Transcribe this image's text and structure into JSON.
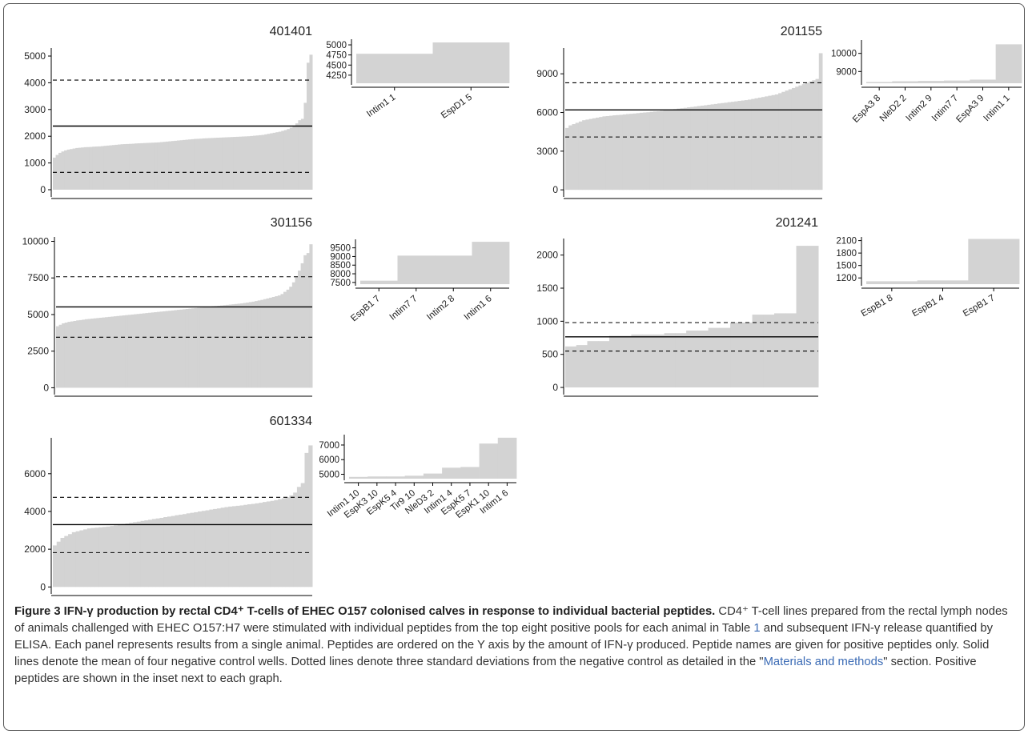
{
  "chart_data": [
    {
      "type": "bar",
      "title": "401401",
      "ylim": [
        -150,
        5300
      ],
      "yticks": [
        0,
        1000,
        2000,
        3000,
        4000,
        5000
      ],
      "mean": 2380,
      "sd_lines": [
        650,
        4100
      ],
      "values": [
        1200,
        1300,
        1380,
        1430,
        1470,
        1500,
        1520,
        1540,
        1560,
        1570,
        1580,
        1590,
        1595,
        1600,
        1610,
        1615,
        1620,
        1630,
        1640,
        1650,
        1660,
        1670,
        1680,
        1690,
        1700,
        1705,
        1710,
        1715,
        1720,
        1730,
        1735,
        1740,
        1745,
        1750,
        1755,
        1760,
        1765,
        1770,
        1780,
        1790,
        1800,
        1810,
        1820,
        1830,
        1840,
        1850,
        1860,
        1870,
        1880,
        1890,
        1900,
        1905,
        1910,
        1920,
        1925,
        1930,
        1935,
        1940,
        1945,
        1950,
        1955,
        1960,
        1965,
        1970,
        1975,
        1980,
        1985,
        1990,
        1995,
        2000,
        2010,
        2020,
        2030,
        2040,
        2050,
        2070,
        2090,
        2110,
        2130,
        2150,
        2170,
        2200,
        2230,
        2270,
        2320,
        2400,
        2480,
        2600,
        2650,
        3250,
        4750,
        5050
      ],
      "inset": {
        "categories": [
          "Intim1 1",
          "EspD1 5"
        ],
        "values": [
          4780,
          5060
        ],
        "ylim": [
          4050,
          5100
        ],
        "yticks": [
          4250,
          4500,
          4750,
          5000
        ]
      }
    },
    {
      "type": "bar",
      "title": "201155",
      "ylim": [
        -300,
        11000
      ],
      "yticks": [
        0,
        3000,
        6000,
        9000
      ],
      "mean": 6200,
      "sd_lines": [
        4100,
        8300
      ],
      "values": [
        4800,
        5000,
        5100,
        5200,
        5300,
        5400,
        5450,
        5500,
        5550,
        5600,
        5650,
        5700,
        5720,
        5750,
        5780,
        5800,
        5820,
        5850,
        5880,
        5900,
        5920,
        5950,
        5980,
        6000,
        6020,
        6050,
        6080,
        6100,
        6130,
        6160,
        6200,
        6230,
        6260,
        6300,
        6330,
        6360,
        6400,
        6430,
        6460,
        6500,
        6530,
        6560,
        6600,
        6630,
        6660,
        6700,
        6730,
        6760,
        6800,
        6830,
        6860,
        6900,
        6930,
        6960,
        7000,
        7050,
        7100,
        7150,
        7200,
        7250,
        7300,
        7350,
        7400,
        7500,
        7600,
        7700,
        7800,
        7900,
        8000,
        8100,
        8200,
        8300,
        8400,
        8500,
        8600,
        10600
      ],
      "inset": {
        "categories": [
          "EspA3 8",
          "NleD2 2",
          "Intim2 9",
          "Intim7 7",
          "EspA3 9",
          "Intim1 1"
        ],
        "values": [
          8420,
          8460,
          8480,
          8500,
          8550,
          10500
        ],
        "ylim": [
          8350,
          10650
        ],
        "yticks": [
          9000,
          10000
        ]
      }
    },
    {
      "type": "bar",
      "title": "301156",
      "ylim": [
        -250,
        10300
      ],
      "yticks": [
        0,
        2500,
        5000,
        7500,
        10000
      ],
      "mean": 5520,
      "sd_lines": [
        3450,
        7580
      ],
      "values": [
        4200,
        4300,
        4400,
        4450,
        4500,
        4530,
        4560,
        4600,
        4620,
        4650,
        4680,
        4700,
        4720,
        4740,
        4760,
        4780,
        4800,
        4820,
        4840,
        4860,
        4880,
        4900,
        4920,
        4940,
        4960,
        4980,
        5000,
        5020,
        5040,
        5060,
        5080,
        5100,
        5120,
        5140,
        5160,
        5180,
        5200,
        5220,
        5240,
        5260,
        5280,
        5300,
        5320,
        5340,
        5360,
        5380,
        5400,
        5420,
        5440,
        5460,
        5480,
        5500,
        5520,
        5540,
        5560,
        5580,
        5600,
        5620,
        5640,
        5660,
        5680,
        5700,
        5720,
        5740,
        5760,
        5790,
        5820,
        5850,
        5880,
        5920,
        5960,
        6000,
        6050,
        6100,
        6150,
        6200,
        6250,
        6300,
        6400,
        6550,
        6700,
        6900,
        7200,
        7600,
        8000,
        8500,
        9050,
        9200,
        9800
      ],
      "inset": {
        "categories": [
          "EspB1 7",
          "Intim7 7",
          "Intim2 8",
          "Intim1 6"
        ],
        "values": [
          7600,
          9050,
          9050,
          9850
        ],
        "ylim": [
          7400,
          9900
        ],
        "yticks": [
          7500,
          8000,
          8500,
          9000,
          9500
        ]
      }
    },
    {
      "type": "bar",
      "title": "201241",
      "ylim": [
        -60,
        2250
      ],
      "yticks": [
        0,
        500,
        1000,
        1500,
        2000
      ],
      "mean": 765,
      "sd_lines": [
        550,
        980
      ],
      "values": [
        620,
        640,
        700,
        700,
        780,
        780,
        800,
        800,
        800,
        820,
        820,
        860,
        860,
        900,
        900,
        980,
        980,
        1100,
        1100,
        1120,
        1120,
        2140,
        2140
      ],
      "inset": {
        "categories": [
          "EspB1 8",
          "EspB1 4",
          "EspB1 7"
        ],
        "values": [
          1120,
          1140,
          2140
        ],
        "ylim": [
          1050,
          2150
        ],
        "yticks": [
          1200,
          1500,
          1800,
          2100
        ]
      }
    },
    {
      "type": "bar",
      "title": "601334",
      "ylim": [
        -200,
        7900
      ],
      "yticks": [
        0,
        2000,
        4000,
        6000
      ],
      "mean": 3300,
      "sd_lines": [
        1820,
        4750
      ],
      "values": [
        2200,
        2400,
        2600,
        2700,
        2800,
        2900,
        2950,
        3000,
        3050,
        3100,
        3120,
        3140,
        3160,
        3180,
        3200,
        3230,
        3260,
        3300,
        3330,
        3360,
        3400,
        3430,
        3460,
        3500,
        3530,
        3560,
        3600,
        3630,
        3660,
        3700,
        3730,
        3760,
        3800,
        3830,
        3860,
        3900,
        3930,
        3960,
        4000,
        4030,
        4060,
        4100,
        4130,
        4160,
        4200,
        4230,
        4260,
        4280,
        4300,
        4320,
        4350,
        4380,
        4400,
        4430,
        4460,
        4500,
        4530,
        4560,
        4600,
        4650,
        4700,
        4750,
        4850,
        5000,
        5300,
        5500,
        7100,
        7500
      ],
      "inset": {
        "categories": [
          "Intim1 10",
          "EspK3 10",
          "EspK5 4",
          "Tir9 10",
          "NleD3 2",
          "Intim1 4",
          "EspK5 7",
          "EspK1 10",
          "Intim1 6"
        ],
        "values": [
          4820,
          4850,
          4850,
          4900,
          5050,
          5450,
          5500,
          7100,
          7500
        ],
        "ylim": [
          4700,
          7600
        ],
        "yticks": [
          5000,
          6000,
          7000
        ]
      }
    }
  ],
  "caption": {
    "title": "Figure 3  IFN-γ production by rectal CD4⁺ T-cells of EHEC O157 colonised calves in response to individual bacterial peptides.",
    "body": " CD4⁺ T-cell lines prepared from the rectal lymph nodes of animals challenged with EHEC O157:H7 were stimulated with individual peptides from the top eight positive pools for each animal in Table ",
    "table_ref": "1",
    "body2": " and subsequent IFN-γ release quantified by ELISA. Each panel represents results from a single animal. Peptides are ordered on the Y axis by the amount of IFN-γ produced. Peptide names are given for positive peptides only. Solid lines denote the mean of four negative control wells. Dotted lines denote three standard deviations from the negative control as detailed in the \"",
    "link": "Materials and methods",
    "body3": "\" section. Positive peptides are shown in the inset next to each graph."
  },
  "colors": {
    "bar": "#d3d3d3",
    "axis": "#000000",
    "link": "#3b6bb5"
  }
}
